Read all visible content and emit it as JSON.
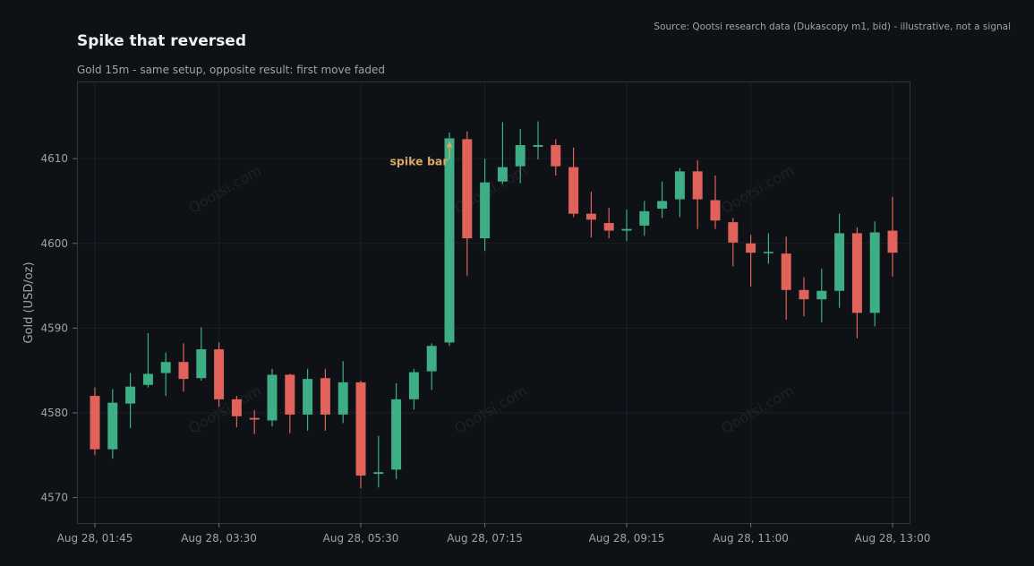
{
  "title": "Spike that reversed",
  "subtitle": "Gold 15m - same setup, opposite result: first move faded",
  "source": "Source: Qootsi research data (Dukascopy m1, bid) - illustrative, not a signal",
  "watermark": "Qootsi.com",
  "colors": {
    "background": "#0e1115",
    "plot_border": "#30343a",
    "grid": "#1c2026",
    "text": "#e8e8e8",
    "muted_text": "#a0a4a8",
    "up": "#3dae85",
    "down": "#e0625a",
    "annotation": "#d9a865"
  },
  "chart_data": {
    "type": "candlestick",
    "ylabel": "Gold (USD/oz)",
    "xlabel": "",
    "ylim": [
      4567,
      4619
    ],
    "yticks": [
      4570,
      4580,
      4590,
      4600,
      4610
    ],
    "interval_minutes": 15,
    "xlim": [
      "Aug 28, 01:30",
      "Aug 28, 13:15"
    ],
    "xticks": [
      {
        "time": "Aug 28, 01:45",
        "label": "Aug 28, 01:45"
      },
      {
        "time": "Aug 28, 03:30",
        "label": "Aug 28, 03:30"
      },
      {
        "time": "Aug 28, 05:30",
        "label": "Aug 28, 05:30"
      },
      {
        "time": "Aug 28, 07:15",
        "label": "Aug 28, 07:15"
      },
      {
        "time": "Aug 28, 09:15",
        "label": "Aug 28, 09:15"
      },
      {
        "time": "Aug 28, 11:00",
        "label": "Aug 28, 11:00"
      },
      {
        "time": "Aug 28, 13:00",
        "label": "Aug 28, 13:00"
      }
    ],
    "grid": true,
    "candles": [
      {
        "time": "Aug 28, 01:45",
        "open": 4582.0,
        "high": 4583.0,
        "low": 4575.0,
        "close": 4575.7
      },
      {
        "time": "Aug 28, 02:00",
        "open": 4575.7,
        "high": 4582.8,
        "low": 4574.6,
        "close": 4581.2
      },
      {
        "time": "Aug 28, 02:15",
        "open": 4581.1,
        "high": 4584.7,
        "low": 4578.2,
        "close": 4583.1
      },
      {
        "time": "Aug 28, 02:30",
        "open": 4583.3,
        "high": 4589.4,
        "low": 4583.0,
        "close": 4584.6
      },
      {
        "time": "Aug 28, 02:45",
        "open": 4584.7,
        "high": 4587.1,
        "low": 4582.0,
        "close": 4586.0
      },
      {
        "time": "Aug 28, 03:00",
        "open": 4586.0,
        "high": 4588.2,
        "low": 4582.5,
        "close": 4584.0
      },
      {
        "time": "Aug 28, 03:15",
        "open": 4584.1,
        "high": 4590.1,
        "low": 4583.8,
        "close": 4587.5
      },
      {
        "time": "Aug 28, 03:30",
        "open": 4587.5,
        "high": 4588.3,
        "low": 4580.7,
        "close": 4581.6
      },
      {
        "time": "Aug 28, 03:45",
        "open": 4581.6,
        "high": 4582.0,
        "low": 4578.3,
        "close": 4579.6
      },
      {
        "time": "Aug 28, 04:00",
        "open": 4579.4,
        "high": 4580.3,
        "low": 4577.5,
        "close": 4579.2
      },
      {
        "time": "Aug 28, 04:15",
        "open": 4579.1,
        "high": 4585.2,
        "low": 4578.4,
        "close": 4584.5
      },
      {
        "time": "Aug 28, 04:30",
        "open": 4584.5,
        "high": 4584.6,
        "low": 4577.6,
        "close": 4579.8
      },
      {
        "time": "Aug 28, 04:45",
        "open": 4579.8,
        "high": 4585.2,
        "low": 4577.9,
        "close": 4584.0
      },
      {
        "time": "Aug 28, 05:00",
        "open": 4584.1,
        "high": 4585.2,
        "low": 4577.9,
        "close": 4579.8
      },
      {
        "time": "Aug 28, 05:15",
        "open": 4579.8,
        "high": 4586.1,
        "low": 4578.8,
        "close": 4583.6
      },
      {
        "time": "Aug 28, 05:30",
        "open": 4583.6,
        "high": 4583.8,
        "low": 4571.1,
        "close": 4572.6
      },
      {
        "time": "Aug 28, 05:45",
        "open": 4572.8,
        "high": 4577.3,
        "low": 4571.2,
        "close": 4573.0
      },
      {
        "time": "Aug 28, 06:00",
        "open": 4573.3,
        "high": 4583.5,
        "low": 4572.2,
        "close": 4581.6
      },
      {
        "time": "Aug 28, 06:15",
        "open": 4581.6,
        "high": 4585.2,
        "low": 4580.4,
        "close": 4584.8
      },
      {
        "time": "Aug 28, 06:30",
        "open": 4584.9,
        "high": 4588.2,
        "low": 4582.7,
        "close": 4587.9
      },
      {
        "time": "Aug 28, 06:45",
        "open": 4588.3,
        "high": 4613.1,
        "low": 4587.9,
        "close": 4612.4
      },
      {
        "time": "Aug 28, 07:00",
        "open": 4612.3,
        "high": 4613.2,
        "low": 4596.2,
        "close": 4600.6
      },
      {
        "time": "Aug 28, 07:15",
        "open": 4600.6,
        "high": 4610.0,
        "low": 4599.1,
        "close": 4607.2
      },
      {
        "time": "Aug 28, 07:30",
        "open": 4607.3,
        "high": 4614.3,
        "low": 4607.0,
        "close": 4609.0
      },
      {
        "time": "Aug 28, 07:45",
        "open": 4609.1,
        "high": 4613.5,
        "low": 4607.1,
        "close": 4611.6
      },
      {
        "time": "Aug 28, 08:00",
        "open": 4611.4,
        "high": 4614.4,
        "low": 4609.9,
        "close": 4611.6
      },
      {
        "time": "Aug 28, 08:15",
        "open": 4611.6,
        "high": 4612.3,
        "low": 4608.0,
        "close": 4609.1
      },
      {
        "time": "Aug 28, 08:30",
        "open": 4609.0,
        "high": 4611.3,
        "low": 4603.1,
        "close": 4603.5
      },
      {
        "time": "Aug 28, 08:45",
        "open": 4603.5,
        "high": 4606.1,
        "low": 4600.7,
        "close": 4602.8
      },
      {
        "time": "Aug 28, 09:00",
        "open": 4602.4,
        "high": 4604.2,
        "low": 4600.6,
        "close": 4601.5
      },
      {
        "time": "Aug 28, 09:15",
        "open": 4601.5,
        "high": 4604.0,
        "low": 4600.3,
        "close": 4601.7
      },
      {
        "time": "Aug 28, 09:30",
        "open": 4602.1,
        "high": 4605.0,
        "low": 4600.9,
        "close": 4603.8
      },
      {
        "time": "Aug 28, 09:45",
        "open": 4604.1,
        "high": 4607.3,
        "low": 4603.0,
        "close": 4605.0
      },
      {
        "time": "Aug 28, 10:00",
        "open": 4605.2,
        "high": 4608.9,
        "low": 4603.1,
        "close": 4608.5
      },
      {
        "time": "Aug 28, 10:15",
        "open": 4608.5,
        "high": 4609.8,
        "low": 4601.7,
        "close": 4605.2
      },
      {
        "time": "Aug 28, 10:30",
        "open": 4605.1,
        "high": 4608.0,
        "low": 4601.7,
        "close": 4602.7
      },
      {
        "time": "Aug 28, 10:45",
        "open": 4602.5,
        "high": 4603.0,
        "low": 4597.3,
        "close": 4600.1
      },
      {
        "time": "Aug 28, 11:00",
        "open": 4600.0,
        "high": 4601.0,
        "low": 4594.9,
        "close": 4598.9
      },
      {
        "time": "Aug 28, 11:15",
        "open": 4598.9,
        "high": 4601.2,
        "low": 4597.6,
        "close": 4599.0
      },
      {
        "time": "Aug 28, 11:30",
        "open": 4598.8,
        "high": 4600.8,
        "low": 4591.0,
        "close": 4594.5
      },
      {
        "time": "Aug 28, 11:45",
        "open": 4594.5,
        "high": 4596.0,
        "low": 4591.4,
        "close": 4593.4
      },
      {
        "time": "Aug 28, 12:00",
        "open": 4593.4,
        "high": 4597.0,
        "low": 4590.7,
        "close": 4594.4
      },
      {
        "time": "Aug 28, 12:15",
        "open": 4594.4,
        "high": 4603.5,
        "low": 4592.4,
        "close": 4601.2
      },
      {
        "time": "Aug 28, 12:30",
        "open": 4601.2,
        "high": 4601.9,
        "low": 4588.8,
        "close": 4591.8
      },
      {
        "time": "Aug 28, 12:45",
        "open": 4591.8,
        "high": 4602.6,
        "low": 4590.2,
        "close": 4601.3
      },
      {
        "time": "Aug 28, 13:00",
        "open": 4601.5,
        "high": 4605.5,
        "low": 4596.1,
        "close": 4598.9
      }
    ],
    "annotations": [
      {
        "text": "spike bar",
        "time": "Aug 28, 06:45",
        "price": 4612.4
      }
    ]
  }
}
